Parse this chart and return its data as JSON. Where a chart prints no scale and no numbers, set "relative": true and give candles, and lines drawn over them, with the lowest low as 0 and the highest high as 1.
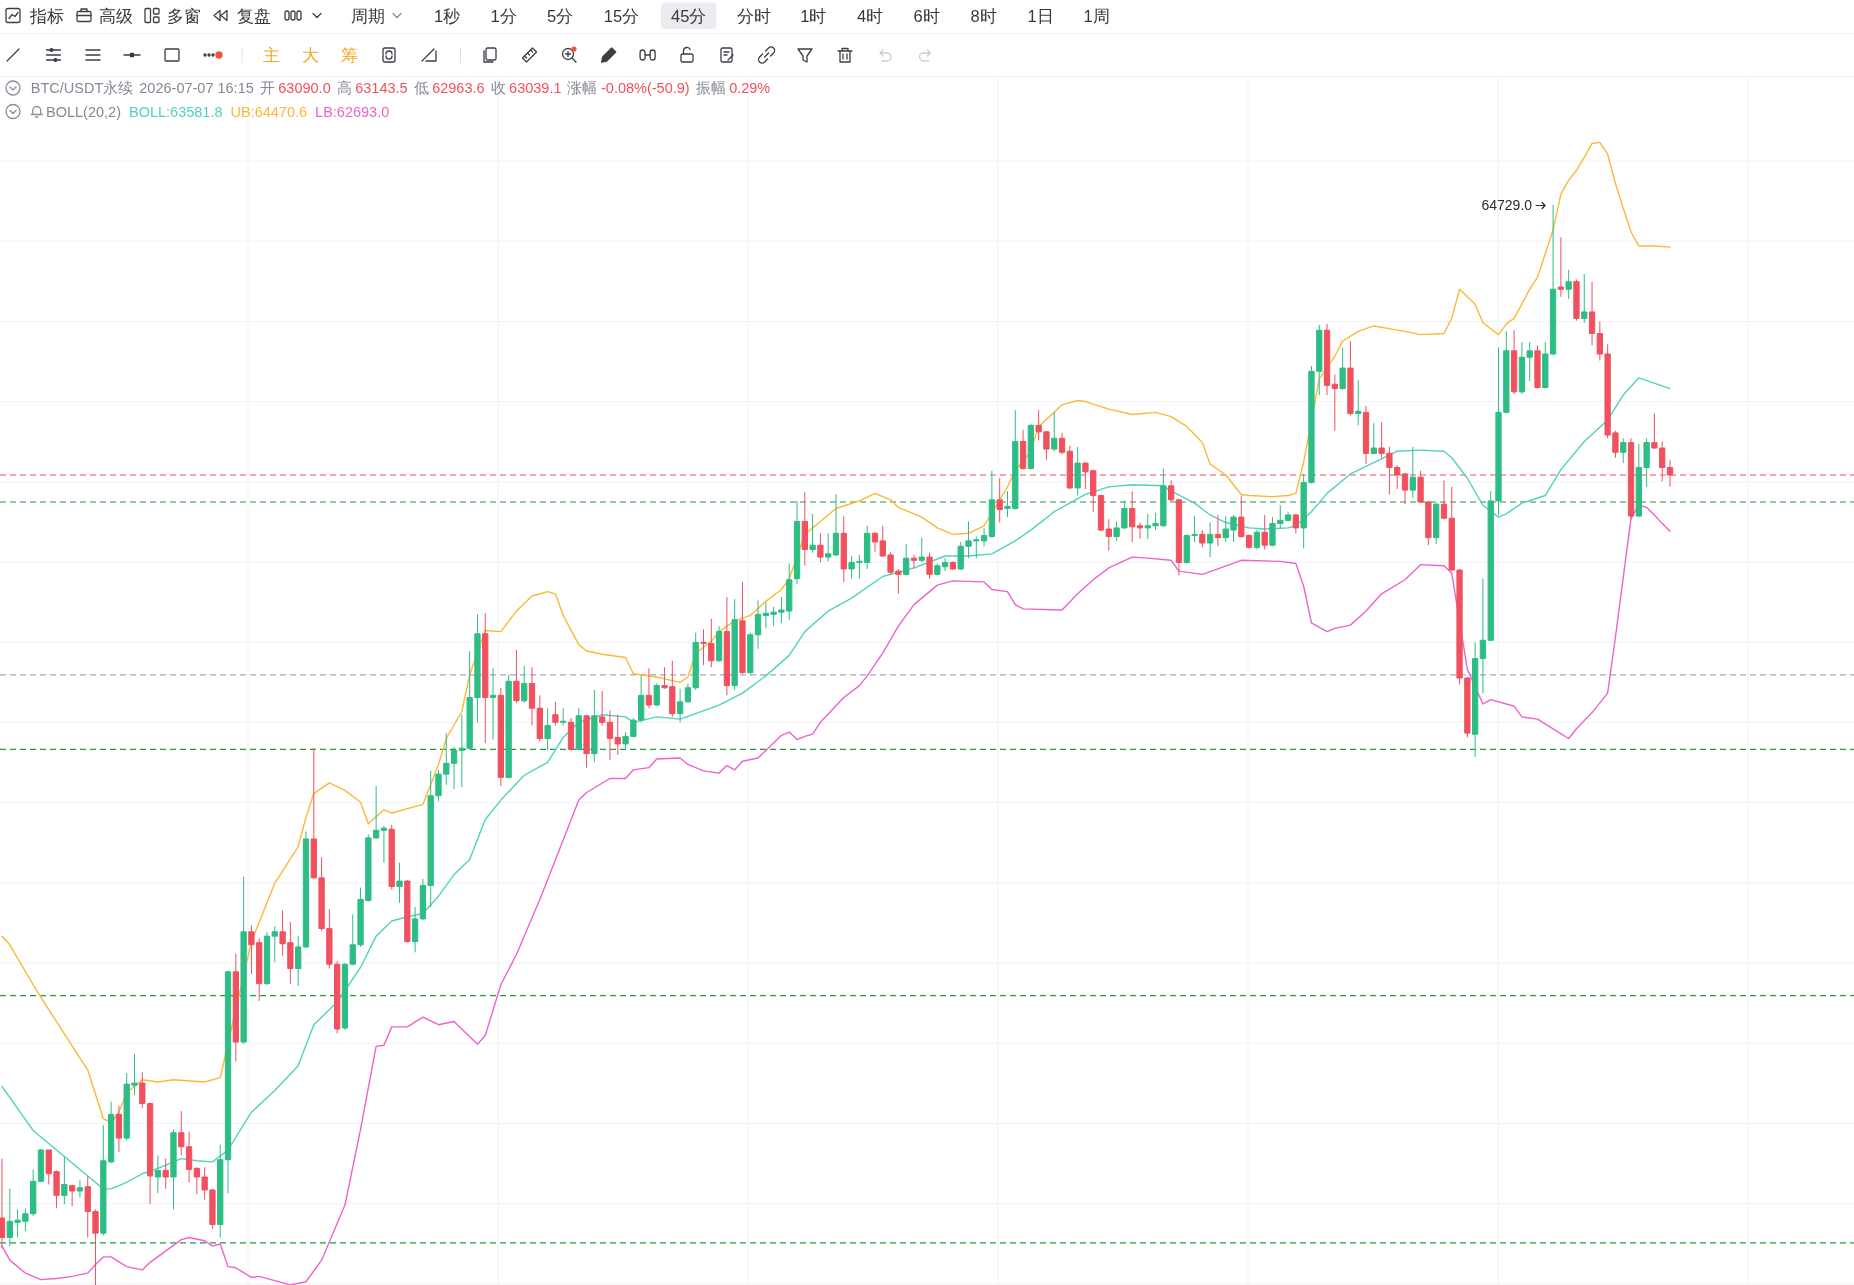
{
  "chart_data": {
    "type": "candlestick",
    "relative": true,
    "grid": true,
    "categories": [
      null,
      null,
      null,
      null,
      null,
      null,
      null,
      null,
      null,
      null,
      null,
      null,
      null,
      null,
      null,
      null,
      null,
      null,
      null,
      null,
      null,
      null,
      null,
      null,
      null,
      null,
      null,
      null,
      null,
      null,
      null,
      null,
      null,
      null,
      null,
      null,
      null,
      null,
      null,
      null,
      null,
      null,
      null,
      null,
      null,
      null,
      null,
      null,
      null,
      null,
      null,
      null,
      null,
      null,
      null,
      null,
      null,
      null,
      null,
      null,
      null,
      null,
      null,
      null,
      null,
      null,
      null,
      null,
      null,
      null,
      null,
      null,
      null,
      null,
      null,
      null,
      null,
      null,
      null,
      null,
      null,
      null,
      null,
      null,
      null,
      null,
      null,
      null,
      null,
      null,
      null,
      null,
      null,
      null,
      null,
      null,
      null,
      null,
      null,
      null,
      null,
      null,
      null,
      null,
      null,
      null,
      null,
      null,
      null,
      null,
      null,
      null,
      null,
      null,
      null,
      null,
      null,
      null,
      null,
      null,
      null,
      null,
      null,
      null,
      null,
      null,
      null,
      null,
      null,
      null,
      null,
      null,
      null,
      null,
      null,
      null,
      null,
      null,
      null,
      null,
      null,
      null,
      null,
      null,
      null,
      null,
      null,
      null,
      null,
      null,
      null,
      null,
      null,
      null,
      null,
      null,
      null,
      null,
      null,
      null,
      null,
      null,
      null,
      null,
      null,
      null,
      null,
      null,
      null,
      null,
      null,
      null,
      null,
      null,
      null,
      null,
      null,
      null,
      null,
      null,
      null,
      null,
      null,
      null,
      null,
      null,
      null,
      null,
      null,
      null,
      null,
      null,
      null,
      null,
      null,
      null,
      null,
      null,
      null,
      null,
      null,
      null,
      null,
      null,
      null,
      null,
      null,
      null,
      null,
      null,
      null,
      null,
      null,
      null,
      null
    ],
    "ohlc": [
      [
        0.062,
        0.117,
        0.034,
        0.044
      ],
      [
        0.044,
        0.089,
        0.036,
        0.059
      ],
      [
        0.058,
        0.07,
        0.044,
        0.06
      ],
      [
        0.059,
        0.071,
        0.05,
        0.066
      ],
      [
        0.066,
        0.107,
        0.064,
        0.096
      ],
      [
        0.096,
        0.126,
        0.095,
        0.125
      ],
      [
        0.125,
        0.125,
        0.093,
        0.103
      ],
      [
        0.105,
        0.106,
        0.071,
        0.083
      ],
      [
        0.083,
        0.119,
        0.075,
        0.093
      ],
      [
        0.092,
        0.093,
        0.073,
        0.087
      ],
      [
        0.087,
        0.097,
        0.081,
        0.09
      ],
      [
        0.091,
        0.101,
        0.044,
        0.068
      ],
      [
        0.068,
        0.07,
        0,
        0.048
      ],
      [
        0.048,
        0.148,
        0.046,
        0.115
      ],
      [
        0.114,
        0.17,
        0.113,
        0.158
      ],
      [
        0.158,
        0.166,
        0.123,
        0.136
      ],
      [
        0.136,
        0.196,
        0.134,
        0.186
      ],
      [
        0.185,
        0.214,
        0.176,
        0.187
      ],
      [
        0.187,
        0.197,
        0.164,
        0.168
      ],
      [
        0.168,
        0.169,
        0.075,
        0.101
      ],
      [
        0.1,
        0.12,
        0.085,
        0.106
      ],
      [
        0.106,
        0.117,
        0.089,
        0.1
      ],
      [
        0.1,
        0.144,
        0.07,
        0.141
      ],
      [
        0.141,
        0.161,
        0.12,
        0.128
      ],
      [
        0.128,
        0.142,
        0.095,
        0.107
      ],
      [
        0.108,
        0.109,
        0.084,
        0.1
      ],
      [
        0.1,
        0.109,
        0.079,
        0.088
      ],
      [
        0.088,
        0.089,
        0.052,
        0.056
      ],
      [
        0.056,
        0.13,
        0.044,
        0.116
      ],
      [
        0.116,
        0.291,
        0.085,
        0.29
      ],
      [
        0.29,
        0.307,
        0.207,
        0.225
      ],
      [
        0.225,
        0.378,
        0.223,
        0.327
      ],
      [
        0.327,
        0.333,
        0.288,
        0.315
      ],
      [
        0.317,
        0.321,
        0.263,
        0.279
      ],
      [
        0.279,
        0.327,
        0.278,
        0.323
      ],
      [
        0.323,
        0.332,
        0.299,
        0.327
      ],
      [
        0.327,
        0.347,
        0.305,
        0.316
      ],
      [
        0.317,
        0.336,
        0.279,
        0.293
      ],
      [
        0.293,
        0.323,
        0.277,
        0.313
      ],
      [
        0.313,
        0.42,
        0.312,
        0.413
      ],
      [
        0.413,
        0.497,
        0.376,
        0.377
      ],
      [
        0.377,
        0.396,
        0.328,
        0.33
      ],
      [
        0.33,
        0.348,
        0.293,
        0.297
      ],
      [
        0.297,
        0.3,
        0.233,
        0.237
      ],
      [
        0.238,
        0.298,
        0.236,
        0.297
      ],
      [
        0.297,
        0.343,
        0.296,
        0.315
      ],
      [
        0.315,
        0.368,
        0.313,
        0.357
      ],
      [
        0.356,
        0.417,
        0.355,
        0.414
      ],
      [
        0.414,
        0.462,
        0.413,
        0.421
      ],
      [
        0.421,
        0.425,
        0.391,
        0.423
      ],
      [
        0.422,
        0.426,
        0.366,
        0.369
      ],
      [
        0.369,
        0.391,
        0.354,
        0.374
      ],
      [
        0.374,
        0.375,
        0.317,
        0.318
      ],
      [
        0.318,
        0.35,
        0.308,
        0.339
      ],
      [
        0.339,
        0.376,
        0.338,
        0.37
      ],
      [
        0.37,
        0.476,
        0.35,
        0.453
      ],
      [
        0.453,
        0.477,
        0.448,
        0.473
      ],
      [
        0.473,
        0.511,
        0.463,
        0.483
      ],
      [
        0.483,
        0.498,
        0.459,
        0.495
      ],
      [
        0.495,
        0.528,
        0.461,
        0.497
      ],
      [
        0.497,
        0.587,
        0.496,
        0.544
      ],
      [
        0.544,
        0.621,
        0.521,
        0.603
      ],
      [
        0.603,
        0.622,
        0.502,
        0.544
      ],
      [
        0.544,
        0.571,
        0.505,
        0.546
      ],
      [
        0.546,
        0.553,
        0.462,
        0.47
      ],
      [
        0.47,
        0.565,
        0.469,
        0.559
      ],
      [
        0.559,
        0.588,
        0.539,
        0.541
      ],
      [
        0.541,
        0.573,
        0.539,
        0.557
      ],
      [
        0.557,
        0.572,
        0.518,
        0.534
      ],
      [
        0.534,
        0.546,
        0.503,
        0.506
      ],
      [
        0.506,
        0.534,
        0.495,
        0.518
      ],
      [
        0.528,
        0.54,
        0.518,
        0.521
      ],
      [
        0.521,
        0.534,
        0.518,
        0.522
      ],
      [
        0.521,
        0.525,
        0.495,
        0.496
      ],
      [
        0.496,
        0.534,
        0.495,
        0.527
      ],
      [
        0.527,
        0.528,
        0.479,
        0.492
      ],
      [
        0.492,
        0.551,
        0.484,
        0.527
      ],
      [
        0.526,
        0.55,
        0.518,
        0.521
      ],
      [
        0.521,
        0.532,
        0.486,
        0.506
      ],
      [
        0.507,
        0.528,
        0.491,
        0.501
      ],
      [
        0.501,
        0.512,
        0.495,
        0.508
      ],
      [
        0.508,
        0.525,
        0.507,
        0.523
      ],
      [
        0.523,
        0.564,
        0.521,
        0.546
      ],
      [
        0.546,
        0.571,
        0.534,
        0.537
      ],
      [
        0.537,
        0.557,
        0.536,
        0.555
      ],
      [
        0.555,
        0.572,
        0.552,
        0.553
      ],
      [
        0.554,
        0.578,
        0.526,
        0.529
      ],
      [
        0.529,
        0.552,
        0.521,
        0.54
      ],
      [
        0.54,
        0.557,
        0.539,
        0.553
      ],
      [
        0.553,
        0.604,
        0.551,
        0.595
      ],
      [
        0.595,
        0.607,
        0.574,
        0.594
      ],
      [
        0.594,
        0.617,
        0.572,
        0.578
      ],
      [
        0.578,
        0.61,
        0.577,
        0.605
      ],
      [
        0.605,
        0.637,
        0.546,
        0.555
      ],
      [
        0.555,
        0.635,
        0.551,
        0.616
      ],
      [
        0.615,
        0.651,
        0.566,
        0.567
      ],
      [
        0.567,
        0.604,
        0.565,
        0.602
      ],
      [
        0.602,
        0.634,
        0.589,
        0.621
      ],
      [
        0.62,
        0.632,
        0.608,
        0.622
      ],
      [
        0.621,
        0.628,
        0.61,
        0.623
      ],
      [
        0.623,
        0.637,
        0.613,
        0.625
      ],
      [
        0.624,
        0.668,
        0.616,
        0.653
      ],
      [
        0.654,
        0.726,
        0.649,
        0.707
      ],
      [
        0.707,
        0.734,
        0.666,
        0.681
      ],
      [
        0.681,
        0.714,
        0.678,
        0.685
      ],
      [
        0.685,
        0.696,
        0.669,
        0.674
      ],
      [
        0.674,
        0.696,
        0.67,
        0.677
      ],
      [
        0.676,
        0.732,
        0.675,
        0.696
      ],
      [
        0.696,
        0.712,
        0.651,
        0.663
      ],
      [
        0.663,
        0.675,
        0.654,
        0.669
      ],
      [
        0.669,
        0.676,
        0.654,
        0.67
      ],
      [
        0.669,
        0.703,
        0.663,
        0.696
      ],
      [
        0.696,
        0.697,
        0.679,
        0.688
      ],
      [
        0.689,
        0.703,
        0.674,
        0.675
      ],
      [
        0.676,
        0.679,
        0.658,
        0.66
      ],
      [
        0.661,
        0.663,
        0.64,
        0.658
      ],
      [
        0.658,
        0.686,
        0.657,
        0.673
      ],
      [
        0.673,
        0.676,
        0.663,
        0.671
      ],
      [
        0.671,
        0.692,
        0.669,
        0.674
      ],
      [
        0.674,
        0.678,
        0.654,
        0.658
      ],
      [
        0.658,
        0.668,
        0.657,
        0.666
      ],
      [
        0.665,
        0.673,
        0.661,
        0.669
      ],
      [
        0.669,
        0.67,
        0.662,
        0.663
      ],
      [
        0.663,
        0.688,
        0.662,
        0.684
      ],
      [
        0.684,
        0.707,
        0.673,
        0.689
      ],
      [
        0.689,
        0.693,
        0.673,
        0.69
      ],
      [
        0.689,
        0.701,
        0.684,
        0.694
      ],
      [
        0.693,
        0.754,
        0.692,
        0.727
      ],
      [
        0.727,
        0.747,
        0.706,
        0.718
      ],
      [
        0.719,
        0.735,
        0.711,
        0.721
      ],
      [
        0.719,
        0.81,
        0.718,
        0.781
      ],
      [
        0.781,
        0.792,
        0.755,
        0.756
      ],
      [
        0.756,
        0.797,
        0.755,
        0.796
      ],
      [
        0.796,
        0.81,
        0.782,
        0.79
      ],
      [
        0.79,
        0.791,
        0.764,
        0.774
      ],
      [
        0.774,
        0.808,
        0.772,
        0.784
      ],
      [
        0.784,
        0.789,
        0.769,
        0.771
      ],
      [
        0.772,
        0.777,
        0.737,
        0.738
      ],
      [
        0.738,
        0.776,
        0.731,
        0.761
      ],
      [
        0.761,
        0.762,
        0.737,
        0.753
      ],
      [
        0.754,
        0.755,
        0.716,
        0.731
      ],
      [
        0.731,
        0.732,
        0.698,
        0.699
      ],
      [
        0.7,
        0.709,
        0.68,
        0.693
      ],
      [
        0.693,
        0.707,
        0.689,
        0.701
      ],
      [
        0.701,
        0.726,
        0.7,
        0.719
      ],
      [
        0.719,
        0.735,
        0.688,
        0.702
      ],
      [
        0.703,
        0.706,
        0.691,
        0.701
      ],
      [
        0.701,
        0.714,
        0.691,
        0.703
      ],
      [
        0.703,
        0.715,
        0.699,
        0.705
      ],
      [
        0.703,
        0.756,
        0.702,
        0.74
      ],
      [
        0.74,
        0.745,
        0.726,
        0.727
      ],
      [
        0.727,
        0.728,
        0.657,
        0.669
      ],
      [
        0.669,
        0.695,
        0.668,
        0.694
      ],
      [
        0.694,
        0.712,
        0.688,
        0.695
      ],
      [
        0.695,
        0.699,
        0.683,
        0.687
      ],
      [
        0.687,
        0.706,
        0.674,
        0.695
      ],
      [
        0.695,
        0.713,
        0.684,
        0.692
      ],
      [
        0.692,
        0.712,
        0.688,
        0.7
      ],
      [
        0.699,
        0.713,
        0.688,
        0.711
      ],
      [
        0.711,
        0.731,
        0.692,
        0.693
      ],
      [
        0.694,
        0.695,
        0.682,
        0.683
      ],
      [
        0.683,
        0.699,
        0.681,
        0.697
      ],
      [
        0.697,
        0.713,
        0.681,
        0.685
      ],
      [
        0.685,
        0.711,
        0.684,
        0.705
      ],
      [
        0.705,
        0.722,
        0.7,
        0.708
      ],
      [
        0.708,
        0.716,
        0.707,
        0.713
      ],
      [
        0.713,
        0.714,
        0.696,
        0.701
      ],
      [
        0.701,
        0.751,
        0.682,
        0.743
      ],
      [
        0.743,
        0.851,
        0.742,
        0.846
      ],
      [
        0.846,
        0.889,
        0.824,
        0.884
      ],
      [
        0.884,
        0.89,
        0.824,
        0.833
      ],
      [
        0.834,
        0.843,
        0.791,
        0.83
      ],
      [
        0.83,
        0.868,
        0.829,
        0.849
      ],
      [
        0.849,
        0.874,
        0.805,
        0.807
      ],
      [
        0.807,
        0.838,
        0.796,
        0.809
      ],
      [
        0.808,
        0.814,
        0.76,
        0.77
      ],
      [
        0.77,
        0.798,
        0.769,
        0.775
      ],
      [
        0.775,
        0.799,
        0.766,
        0.77
      ],
      [
        0.77,
        0.776,
        0.732,
        0.757
      ],
      [
        0.757,
        0.759,
        0.737,
        0.75
      ],
      [
        0.751,
        0.752,
        0.723,
        0.736
      ],
      [
        0.736,
        0.776,
        0.729,
        0.748
      ],
      [
        0.748,
        0.754,
        0.724,
        0.725
      ],
      [
        0.725,
        0.726,
        0.685,
        0.692
      ],
      [
        0.692,
        0.724,
        0.686,
        0.723
      ],
      [
        0.723,
        0.745,
        0.709,
        0.71
      ],
      [
        0.71,
        0.739,
        0.661,
        0.662
      ],
      [
        0.662,
        0.663,
        0.556,
        0.562
      ],
      [
        0.562,
        0.563,
        0.507,
        0.511
      ],
      [
        0.51,
        0.595,
        0.489,
        0.58
      ],
      [
        0.58,
        0.654,
        0.548,
        0.597
      ],
      [
        0.597,
        0.735,
        0.596,
        0.726
      ],
      [
        0.726,
        0.868,
        0.713,
        0.808
      ],
      [
        0.808,
        0.883,
        0.807,
        0.865
      ],
      [
        0.865,
        0.884,
        0.825,
        0.827
      ],
      [
        0.827,
        0.873,
        0.825,
        0.859
      ],
      [
        0.859,
        0.873,
        0.837,
        0.865
      ],
      [
        0.865,
        0.87,
        0.83,
        0.831
      ],
      [
        0.831,
        0.873,
        0.83,
        0.862
      ],
      [
        0.862,
        1,
        0.861,
        0.922
      ],
      [
        0.924,
        0.97,
        0.915,
        0.922
      ],
      [
        0.922,
        0.94,
        0.913,
        0.929
      ],
      [
        0.929,
        0.931,
        0.893,
        0.895
      ],
      [
        0.895,
        0.936,
        0.891,
        0.901
      ],
      [
        0.901,
        0.929,
        0.87,
        0.881
      ],
      [
        0.881,
        0.892,
        0.856,
        0.862
      ],
      [
        0.862,
        0.871,
        0.784,
        0.787
      ],
      [
        0.789,
        0.791,
        0.766,
        0.771
      ],
      [
        0.771,
        0.784,
        0.761,
        0.78
      ],
      [
        0.78,
        0.784,
        0.709,
        0.712
      ],
      [
        0.712,
        0.779,
        0.711,
        0.757
      ],
      [
        0.757,
        0.784,
        0.739,
        0.78
      ],
      [
        0.78,
        0.807,
        0.774,
        0.775
      ],
      [
        0.775,
        0.781,
        0.744,
        0.757
      ],
      [
        0.757,
        0.764,
        0.739,
        0.75
      ]
    ],
    "colors": [
      "#f0515f",
      "#2ebd85",
      "#2ebd85",
      "#2ebd85",
      "#2ebd85",
      "#2ebd85",
      "#f0515f",
      "#f0515f",
      "#2ebd85",
      "#f0515f",
      "#2ebd85",
      "#f0515f",
      "#f0515f",
      "#2ebd85",
      "#2ebd85",
      "#f0515f",
      "#2ebd85",
      "#2ebd85",
      "#f0515f",
      "#f0515f",
      "#2ebd85",
      "#f0515f",
      "#2ebd85",
      "#f0515f",
      "#f0515f",
      "#f0515f",
      "#f0515f",
      "#f0515f",
      "#2ebd85",
      "#2ebd85",
      "#f0515f",
      "#2ebd85",
      "#f0515f",
      "#f0515f",
      "#2ebd85",
      "#2ebd85",
      "#f0515f",
      "#f0515f",
      "#2ebd85",
      "#2ebd85",
      "#f0515f",
      "#f0515f",
      "#f0515f",
      "#f0515f",
      "#2ebd85",
      "#2ebd85",
      "#2ebd85",
      "#2ebd85",
      "#2ebd85",
      "#2ebd85",
      "#f0515f",
      "#2ebd85",
      "#f0515f",
      "#2ebd85",
      "#2ebd85",
      "#2ebd85",
      "#2ebd85",
      "#2ebd85",
      "#2ebd85",
      "#2ebd85",
      "#2ebd85",
      "#2ebd85",
      "#f0515f",
      "#2ebd85",
      "#f0515f",
      "#2ebd85",
      "#f0515f",
      "#2ebd85",
      "#f0515f",
      "#f0515f",
      "#2ebd85",
      "#f0515f",
      "#2ebd85",
      "#f0515f",
      "#2ebd85",
      "#f0515f",
      "#2ebd85",
      "#f0515f",
      "#f0515f",
      "#f0515f",
      "#2ebd85",
      "#2ebd85",
      "#2ebd85",
      "#f0515f",
      "#2ebd85",
      "#f0515f",
      "#f0515f",
      "#2ebd85",
      "#2ebd85",
      "#2ebd85",
      "#f0515f",
      "#f0515f",
      "#2ebd85",
      "#f0515f",
      "#2ebd85",
      "#f0515f",
      "#2ebd85",
      "#2ebd85",
      "#2ebd85",
      "#2ebd85",
      "#2ebd85",
      "#2ebd85",
      "#2ebd85",
      "#f0515f",
      "#2ebd85",
      "#f0515f",
      "#2ebd85",
      "#2ebd85",
      "#f0515f",
      "#2ebd85",
      "#2ebd85",
      "#2ebd85",
      "#f0515f",
      "#f0515f",
      "#f0515f",
      "#f0515f",
      "#2ebd85",
      "#f0515f",
      "#2ebd85",
      "#f0515f",
      "#2ebd85",
      "#2ebd85",
      "#f0515f",
      "#2ebd85",
      "#2ebd85",
      "#2ebd85",
      "#2ebd85",
      "#2ebd85",
      "#f0515f",
      "#2ebd85",
      "#2ebd85",
      "#f0515f",
      "#2ebd85",
      "#f0515f",
      "#f0515f",
      "#2ebd85",
      "#f0515f",
      "#f0515f",
      "#2ebd85",
      "#f0515f",
      "#f0515f",
      "#f0515f",
      "#f0515f",
      "#2ebd85",
      "#2ebd85",
      "#f0515f",
      "#f0515f",
      "#2ebd85",
      "#2ebd85",
      "#2ebd85",
      "#f0515f",
      "#f0515f",
      "#2ebd85",
      "#2ebd85",
      "#f0515f",
      "#2ebd85",
      "#f0515f",
      "#2ebd85",
      "#2ebd85",
      "#f0515f",
      "#f0515f",
      "#2ebd85",
      "#f0515f",
      "#2ebd85",
      "#2ebd85",
      "#2ebd85",
      "#f0515f",
      "#2ebd85",
      "#2ebd85",
      "#2ebd85",
      "#f0515f",
      "#f0515f",
      "#2ebd85",
      "#f0515f",
      "#2ebd85",
      "#f0515f",
      "#2ebd85",
      "#f0515f",
      "#f0515f",
      "#f0515f",
      "#f0515f",
      "#2ebd85",
      "#f0515f",
      "#f0515f",
      "#2ebd85",
      "#f0515f",
      "#f0515f",
      "#f0515f",
      "#f0515f",
      "#2ebd85",
      "#2ebd85",
      "#2ebd85",
      "#2ebd85",
      "#2ebd85",
      "#f0515f",
      "#2ebd85",
      "#2ebd85",
      "#f0515f",
      "#2ebd85",
      "#2ebd85",
      "#f0515f",
      "#2ebd85",
      "#f0515f",
      "#2ebd85",
      "#f0515f",
      "#f0515f",
      "#f0515f",
      "#f0515f",
      "#2ebd85",
      "#f0515f",
      "#2ebd85",
      "#2ebd85",
      "#f0515f",
      "#f0515f",
      "#f0515f"
    ],
    "series": [
      {
        "type": "line",
        "color": "#4fd3bb",
        "values": [
          0.184,
          null,
          null,
          null,
          0.143,
          null,
          null,
          null,
          0.119,
          null,
          null,
          0.101,
          null,
          0.089,
          0.089,
          null,
          0.095,
          null,
          0.103,
          null,
          0.108,
          null,
          null,
          0.117,
          null,
          0.115,
          null,
          0.114,
          null,
          0.125,
          null,
          null,
          0.16,
          null,
          null,
          0.18,
          null,
          null,
          0.203,
          null,
          0.241,
          null,
          null,
          0.262,
          null,
          null,
          0.294,
          null,
          0.323,
          null,
          0.337,
          null,
          0.341,
          null,
          0.344,
          null,
          0.36,
          null,
          0.38,
          null,
          0.394,
          null,
          0.431,
          null,
          0.449,
          null,
          null,
          0.472,
          null,
          null,
          0.484,
          null,
          0.507,
          null,
          0.521,
          null,
          null,
          0.528,
          null,
          null,
          0.526,
          0.521,
          null,
          null,
          0.526,
          null,
          null,
          0.524,
          null,
          0.529,
          null,
          null,
          0.537,
          null,
          null,
          0.548,
          null,
          null,
          0.564,
          null,
          null,
          0.583,
          null,
          0.605,
          null,
          null,
          0.624,
          null,
          null,
          0.636,
          null,
          null,
          null,
          0.656,
          null,
          null,
          null,
          0.664,
          null,
          null,
          null,
          0.675,
          null,
          null,
          0.675,
          null,
          null,
          0.677,
          null,
          null,
          0.689,
          null,
          0.699,
          null,
          null,
          0.716,
          null,
          null,
          null,
          0.732,
          null,
          null,
          0.739,
          null,
          null,
          0.741,
          null,
          null,
          null,
          0.74,
          0.735,
          null,
          null,
          0.724,
          null,
          0.713,
          null,
          0.706,
          null,
          null,
          0.701,
          null,
          0.7,
          null,
          null,
          0.701,
          0.703,
          null,
          0.716,
          null,
          0.733,
          null,
          null,
          0.751,
          null,
          null,
          null,
          0.765,
          null,
          0.772,
          null,
          null,
          0.773,
          null,
          null,
          0.772,
          0.766,
          null,
          0.747,
          null,
          0.722,
          null,
          0.711,
          0.714,
          null,
          0.724,
          null,
          null,
          0.731,
          null,
          0.755,
          null,
          null,
          0.781,
          null,
          null,
          0.801,
          null,
          0.824,
          null,
          0.84,
          null,
          null,
          null,
          0.83
        ]
      },
      {
        "type": "line",
        "color": "#fbb935",
        "values": [
          0.323,
          0.315,
          null,
          null,
          0.278,
          null,
          0.255,
          null,
          null,
          null,
          null,
          0.199,
          null,
          0.154,
          0.15,
          0.16,
          0.178,
          null,
          0.19,
          null,
          0.188,
          null,
          0.19,
          null,
          null,
          null,
          0.188,
          null,
          0.192,
          null,
          null,
          null,
          0.318,
          null,
          null,
          0.372,
          null,
          null,
          0.406,
          0.433,
          0.455,
          null,
          0.465,
          null,
          0.458,
          null,
          0.447,
          0.427,
          null,
          0.44,
          0.437,
          null,
          null,
          null,
          0.445,
          null,
          0.482,
          0.506,
          null,
          0.531,
          0.565,
          null,
          0.606,
          null,
          0.605,
          null,
          0.624,
          null,
          0.638,
          null,
          0.642,
          0.64,
          0.62,
          null,
          0.593,
          0.587,
          null,
          0.584,
          null,
          null,
          0.581,
          0.566,
          null,
          null,
          0.563,
          null,
          null,
          0.558,
          0.563,
          0.585,
          null,
          0.596,
          0.605,
          null,
          0.615,
          null,
          0.62,
          null,
          0.633,
          null,
          0.644,
          0.654,
          null,
          0.695,
          null,
          0.707,
          null,
          0.719,
          null,
          null,
          0.726,
          null,
          0.733,
          null,
          0.727,
          0.72,
          null,
          null,
          0.711,
          null,
          0.701,
          null,
          0.695,
          null,
          0.696,
          null,
          0.703,
          null,
          null,
          0.739,
          0.754,
          null,
          0.772,
          0.795,
          null,
          0.808,
          0.815,
          null,
          0.819,
          0.818,
          null,
          null,
          0.811,
          null,
          null,
          0.806,
          null,
          null,
          0.808,
          null,
          0.804,
          null,
          0.795,
          null,
          0.78,
          0.76,
          null,
          0.75,
          null,
          0.732,
          0.731,
          null,
          null,
          0.73,
          null,
          0.731,
          0.733,
          0.762,
          null,
          0.839,
          null,
          0.86,
          0.874,
          null,
          0.883,
          null,
          0.888,
          null,
          null,
          null,
          0.883,
          null,
          0.88,
          null,
          null,
          0.881,
          0.895,
          0.922,
          null,
          0.908,
          0.891,
          null,
          0.88,
          0.89,
          0.895,
          null,
          0.922,
          0.933,
          0.955,
          0.977,
          1.01,
          1.023,
          1.032,
          1.044,
          1.057,
          1.058,
          1.047,
          1.02,
          0.997,
          0.975,
          0.962,
          null,
          0.962,
          null,
          0.961
        ]
      },
      {
        "type": "line",
        "color": "#ee63cb",
        "values": [
          0.036,
          0.023,
          null,
          0.011,
          null,
          0.005,
          null,
          0.006,
          null,
          0.008,
          null,
          0.011,
          0.019,
          0.026,
          0.026,
          null,
          0.017,
          null,
          0.014,
          0.021,
          null,
          null,
          null,
          0.042,
          0.044,
          null,
          0.041,
          0.036,
          0.038,
          0.017,
          0.016,
          null,
          0.007,
          0.008,
          null,
          0.004,
          null,
          0,
          null,
          0.003,
          null,
          0.023,
          null,
          null,
          0.074,
          null,
          0.144,
          null,
          0.221,
          0.222,
          0.239,
          null,
          0.239,
          null,
          0.248,
          null,
          0.241,
          null,
          0.244,
          null,
          null,
          0.223,
          0.231,
          null,
          0.278,
          null,
          0.306,
          null,
          null,
          0.357,
          null,
          null,
          0.412,
          null,
          0.449,
          0.456,
          null,
          null,
          0.469,
          null,
          0.469,
          0.477,
          null,
          0.479,
          0.487,
          null,
          null,
          0.488,
          0.482,
          null,
          0.476,
          null,
          0.474,
          0.481,
          0.477,
          0.485,
          null,
          0.488,
          0.495,
          null,
          0.509,
          0.512,
          0.505,
          0.508,
          0.51,
          0.521,
          null,
          null,
          0.544,
          null,
          0.555,
          0.564,
          null,
          0.585,
          null,
          0.61,
          null,
          0.63,
          null,
          null,
          0.648,
          null,
          0.652,
          null,
          null,
          null,
          0.651,
          0.644,
          null,
          0.642,
          0.63,
          0.626,
          null,
          null,
          null,
          null,
          0.625,
          null,
          0.64,
          null,
          0.653,
          null,
          0.664,
          null,
          null,
          0.674,
          null,
          0.673,
          null,
          null,
          0.671,
          0.661,
          null,
          null,
          0.658,
          null,
          0.663,
          null,
          null,
          0.671,
          null,
          null,
          null,
          null,
          0.67,
          null,
          0.668,
          0.647,
          0.613,
          null,
          0.605,
          0.608,
          null,
          0.611,
          null,
          0.624,
          null,
          0.64,
          null,
          null,
          0.653,
          null,
          0.667,
          null,
          null,
          0.666,
          0.659,
          null,
          0.57,
          null,
          0.538,
          0.542,
          null,
          0.538,
          0.536,
          0.526,
          null,
          0.524,
          null,
          0.515,
          null,
          0.506,
          0.515,
          null,
          0.53,
          null,
          0.548,
          0.6,
          0.655,
          0.71,
          0.722,
          0.72,
          0.713,
          0.705,
          0.698
        ]
      }
    ],
    "ref_lines": [
      {
        "axis": "y",
        "value": 0.75,
        "color": "#f0515f",
        "line_style": "dashed"
      },
      {
        "axis": "y",
        "value": 0.725,
        "color": "#239a3b",
        "line_style": "dashed"
      },
      {
        "axis": "y",
        "value": 0.565,
        "color": "#a3a8b8",
        "line_style": "dashed"
      },
      {
        "axis": "y",
        "value": 0.496,
        "color": "#239a3b",
        "line_style": "dashed"
      },
      {
        "axis": "y",
        "value": 0.268,
        "color": "#239a3b",
        "line_style": "dashed"
      },
      {
        "axis": "y",
        "value": 0.039,
        "color": "#239a3b",
        "line_style": "dashed"
      }
    ],
    "annotations": [
      "指标",
      "高级",
      "多窗",
      "复盘",
      "周期",
      "1秒",
      "1分",
      "5分",
      "15分",
      "45分",
      "分时",
      "1时",
      "4时",
      "6时",
      "8时",
      "1日",
      "1周",
      "主",
      "大",
      "筹",
      "BTC/USDT永续",
      "2026-07-07 16:15",
      "开",
      "63090.0",
      "高",
      "63143.5",
      "低",
      "62963.6",
      "收",
      "63039.1",
      "涨幅",
      "-0.08%(-50.9)",
      "振幅",
      "0.29%",
      "BOLL(20,2)",
      "BOLL:63581.8",
      "UB:64470.6",
      "LB:62693.0",
      "64729.0"
    ]
  }
}
